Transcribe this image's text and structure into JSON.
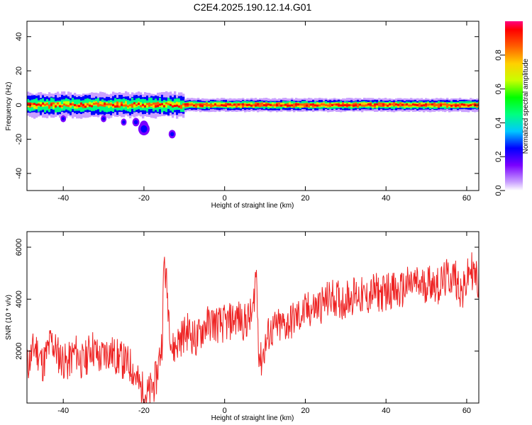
{
  "title": "C2E4.2025.190.12.14.G01",
  "chart_data": [
    {
      "type": "heatmap",
      "xlabel": "Height of straight line (km)",
      "ylabel": "Frequency (Hz)",
      "xlim": [
        -49,
        63
      ],
      "ylim": [
        -50,
        49
      ],
      "x_ticks": [
        -40,
        -20,
        0,
        20,
        40,
        60
      ],
      "y_ticks": [
        40,
        20,
        0,
        -20,
        -40
      ],
      "colorbar": {
        "label": "Normalized spectral amplitude",
        "range": [
          0.0,
          1.0
        ],
        "ticks": [
          0.0,
          0.2,
          0.4,
          0.6,
          0.8
        ],
        "tick_labels": [
          "0.0",
          "0.2",
          "0.4",
          "0.6",
          "0.8"
        ],
        "colormap": [
          "#ffffff",
          "#c9a0ff",
          "#7a00ff",
          "#0000ff",
          "#00c8ff",
          "#00ff80",
          "#00ff00",
          "#c8ff00",
          "#ffd000",
          "#ff6000",
          "#ff0000",
          "#ff0080"
        ]
      },
      "band": {
        "center_frequency_hz": 0,
        "description": "Strong narrow band near 0 Hz across all heights, broader and weaker for heights below -10 km; isolated patches near -12 to -20 Hz around heights -20 to -13 km"
      }
    },
    {
      "type": "line",
      "xlabel": "Height of straight line (km)",
      "ylabel": "SNR (10 * v/v)",
      "xlim": [
        -49,
        63
      ],
      "ylim": [
        0,
        6600
      ],
      "x_ticks": [
        -40,
        -20,
        0,
        20,
        40,
        60
      ],
      "y_ticks": [
        2000,
        4000,
        6000
      ],
      "color": "#ee2222",
      "series": [
        {
          "x": [
            -49,
            -47,
            -45,
            -43,
            -41,
            -39,
            -37,
            -35,
            -33,
            -31,
            -29,
            -27,
            -25,
            -23,
            -21,
            -19,
            -17,
            -15.5,
            -15,
            -13,
            -11,
            -9,
            -7,
            -5,
            -3,
            -1,
            1,
            3,
            5,
            7,
            7.8,
            8.5,
            9,
            11,
            13,
            15,
            17,
            19,
            21,
            23,
            25,
            27,
            29,
            31,
            33,
            35,
            37,
            39,
            41,
            43,
            45,
            47,
            49,
            51,
            53,
            55,
            57,
            59,
            61,
            63
          ],
          "y": [
            1400,
            2200,
            1500,
            2400,
            1800,
            1500,
            2000,
            1500,
            2200,
            1700,
            2000,
            1800,
            1600,
            1400,
            600,
            300,
            900,
            2400,
            5600,
            2000,
            2500,
            2800,
            2400,
            3000,
            3100,
            3000,
            3100,
            3300,
            3100,
            3400,
            5200,
            2000,
            1600,
            2700,
            2900,
            3000,
            3200,
            3400,
            3600,
            3700,
            3900,
            4100,
            3900,
            4100,
            4200,
            4000,
            4300,
            4200,
            4400,
            4200,
            4500,
            4600,
            4500,
            4700,
            4500,
            4800,
            4900,
            4200,
            5200,
            4600
          ]
        }
      ]
    }
  ]
}
